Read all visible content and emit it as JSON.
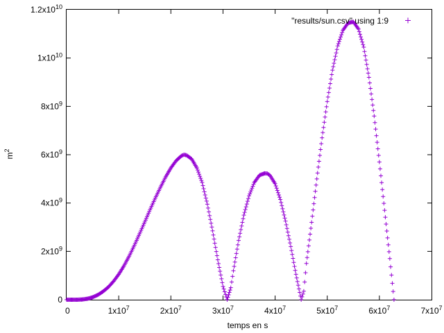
{
  "chart_data": {
    "type": "scatter",
    "title": "",
    "xlabel": "temps en s",
    "ylabel": "m",
    "ylabel_superscript": "2",
    "xlim": [
      0,
      70000000
    ],
    "ylim": [
      0,
      12000000000
    ],
    "grid": false,
    "legend_position": "top-right",
    "x_ticks": [
      {
        "value": 0,
        "mantissa": "0",
        "exp": ""
      },
      {
        "value": 10000000,
        "mantissa": "1x10",
        "exp": "7"
      },
      {
        "value": 20000000,
        "mantissa": "2x10",
        "exp": "7"
      },
      {
        "value": 30000000,
        "mantissa": "3x10",
        "exp": "7"
      },
      {
        "value": 40000000,
        "mantissa": "4x10",
        "exp": "7"
      },
      {
        "value": 50000000,
        "mantissa": "5x10",
        "exp": "7"
      },
      {
        "value": 60000000,
        "mantissa": "6x10",
        "exp": "7"
      },
      {
        "value": 70000000,
        "mantissa": "7x10",
        "exp": "7"
      }
    ],
    "y_ticks": [
      {
        "value": 0,
        "mantissa": "0",
        "exp": ""
      },
      {
        "value": 2000000000,
        "mantissa": "2x10",
        "exp": "9"
      },
      {
        "value": 4000000000,
        "mantissa": "4x10",
        "exp": "9"
      },
      {
        "value": 6000000000,
        "mantissa": "6x10",
        "exp": "9"
      },
      {
        "value": 8000000000,
        "mantissa": "8x10",
        "exp": "9"
      },
      {
        "value": 10000000000,
        "mantissa": "1x10",
        "exp": "10"
      },
      {
        "value": 12000000000,
        "mantissa": "1.2x10",
        "exp": "10"
      }
    ],
    "series": [
      {
        "name": "\"results/sun.csv\" using 1:9",
        "color": "#9400d3",
        "marker": "plus",
        "points": [
          [
            0,
            0
          ],
          [
            1000000,
            0
          ],
          [
            2000000,
            0
          ],
          [
            3000000,
            10000000
          ],
          [
            4000000,
            40000000
          ],
          [
            5000000,
            100000000
          ],
          [
            6000000,
            200000000
          ],
          [
            7000000,
            340000000
          ],
          [
            8000000,
            520000000
          ],
          [
            9000000,
            760000000
          ],
          [
            10000000,
            1050000000
          ],
          [
            11000000,
            1400000000
          ],
          [
            12000000,
            1800000000
          ],
          [
            13000000,
            2250000000
          ],
          [
            14000000,
            2730000000
          ],
          [
            15000000,
            3220000000
          ],
          [
            16000000,
            3720000000
          ],
          [
            17000000,
            4200000000
          ],
          [
            18000000,
            4650000000
          ],
          [
            19000000,
            5080000000
          ],
          [
            20000000,
            5450000000
          ],
          [
            21000000,
            5750000000
          ],
          [
            22000000,
            5950000000
          ],
          [
            22500000,
            6000000000
          ],
          [
            23000000,
            5980000000
          ],
          [
            24000000,
            5820000000
          ],
          [
            25000000,
            5450000000
          ],
          [
            26000000,
            4850000000
          ],
          [
            27000000,
            3950000000
          ],
          [
            28000000,
            2850000000
          ],
          [
            29000000,
            1650000000
          ],
          [
            30000000,
            550000000
          ],
          [
            30800000,
            0
          ],
          [
            31500000,
            500000000
          ],
          [
            32000000,
            1200000000
          ],
          [
            33000000,
            2450000000
          ],
          [
            34000000,
            3500000000
          ],
          [
            35000000,
            4300000000
          ],
          [
            36000000,
            4850000000
          ],
          [
            37000000,
            5150000000
          ],
          [
            38000000,
            5230000000
          ],
          [
            38500000,
            5220000000
          ],
          [
            39000000,
            5150000000
          ],
          [
            40000000,
            4800000000
          ],
          [
            41000000,
            4150000000
          ],
          [
            42000000,
            3250000000
          ],
          [
            43000000,
            2200000000
          ],
          [
            44000000,
            1050000000
          ],
          [
            45000000,
            0
          ],
          [
            45500000,
            350000000
          ],
          [
            46000000,
            1500000000
          ],
          [
            47000000,
            3200000000
          ],
          [
            48000000,
            5000000000
          ],
          [
            49000000,
            6700000000
          ],
          [
            50000000,
            8200000000
          ],
          [
            51000000,
            9500000000
          ],
          [
            52000000,
            10500000000
          ],
          [
            53000000,
            11150000000
          ],
          [
            54000000,
            11450000000
          ],
          [
            55000000,
            11500000000
          ],
          [
            56000000,
            11200000000
          ],
          [
            57000000,
            10450000000
          ],
          [
            58000000,
            9200000000
          ],
          [
            59000000,
            7600000000
          ],
          [
            60000000,
            5700000000
          ],
          [
            61000000,
            3700000000
          ],
          [
            62000000,
            1700000000
          ],
          [
            62800000,
            0
          ]
        ]
      }
    ]
  }
}
